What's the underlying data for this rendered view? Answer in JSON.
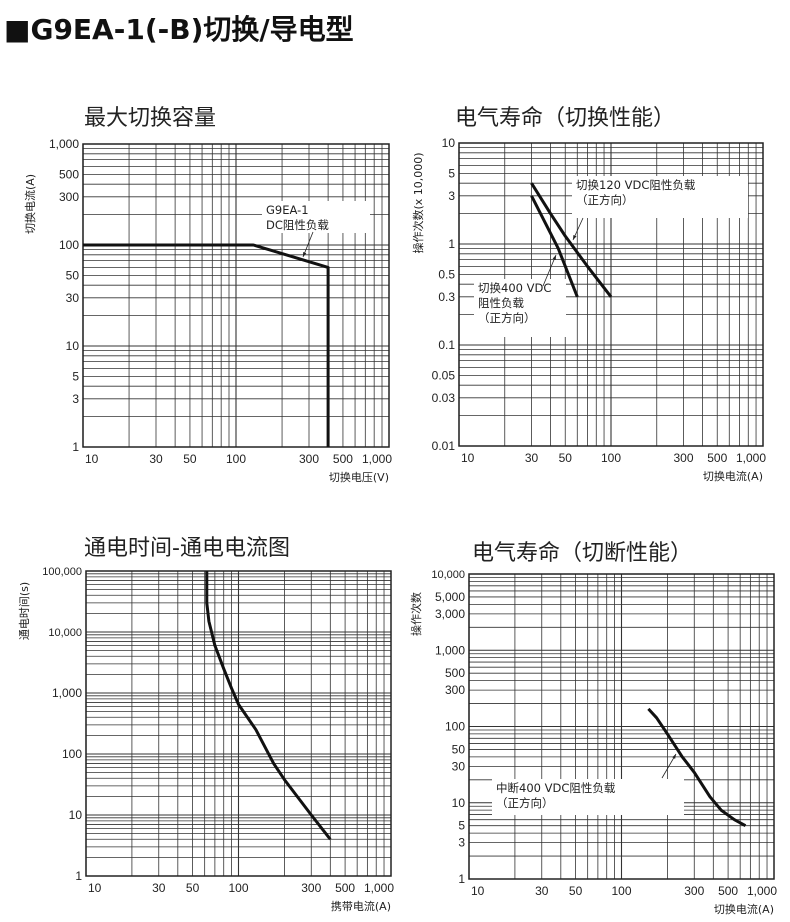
{
  "header": {
    "title": "■G9EA-1(-B)切换/导电型"
  },
  "chart_data": [
    {
      "type": "line",
      "title": "最大切换容量",
      "xlabel": "切换电压(V)",
      "ylabel": "切换电流(A)",
      "xscale": "log",
      "yscale": "log",
      "xlim": [
        10,
        1000
      ],
      "ylim": [
        1,
        1000
      ],
      "xticks": [
        [
          10,
          "10"
        ],
        [
          30,
          "30"
        ],
        [
          50,
          "50"
        ],
        [
          100,
          "100"
        ],
        [
          300,
          "300"
        ],
        [
          500,
          "500"
        ],
        [
          1000,
          "1,000"
        ]
      ],
      "yticks": [
        [
          1,
          "1"
        ],
        [
          3,
          "3"
        ],
        [
          5,
          "5"
        ],
        [
          10,
          "10"
        ],
        [
          30,
          "30"
        ],
        [
          50,
          "50"
        ],
        [
          100,
          "100"
        ],
        [
          300,
          "300"
        ],
        [
          500,
          "500"
        ],
        [
          1000,
          "1,000"
        ]
      ],
      "grid": true,
      "series": [
        {
          "name": "G9EA-1 DC阻性负载",
          "x": [
            10,
            130,
            400,
            400
          ],
          "y": [
            100,
            100,
            60,
            1
          ]
        }
      ],
      "annotations": [
        {
          "lines": [
            "G9EA-1",
            "DC阻性负载"
          ]
        }
      ]
    },
    {
      "type": "line",
      "title": "电气寿命（切换性能）",
      "xlabel": "切换电流(A)",
      "ylabel": "操作次数(x 10,000)",
      "xscale": "log",
      "yscale": "log",
      "xlim": [
        10,
        1000
      ],
      "ylim": [
        0.01,
        10
      ],
      "xticks": [
        [
          10,
          "10"
        ],
        [
          30,
          "30"
        ],
        [
          50,
          "50"
        ],
        [
          100,
          "100"
        ],
        [
          300,
          "300"
        ],
        [
          500,
          "500"
        ],
        [
          1000,
          "1,000"
        ]
      ],
      "yticks": [
        [
          0.01,
          "0.01"
        ],
        [
          0.03,
          "0.03"
        ],
        [
          0.05,
          "0.05"
        ],
        [
          0.1,
          "0.1"
        ],
        [
          0.3,
          "0.3"
        ],
        [
          0.5,
          "0.5"
        ],
        [
          1,
          "1"
        ],
        [
          3,
          "3"
        ],
        [
          5,
          "5"
        ],
        [
          10,
          "10"
        ]
      ],
      "grid": true,
      "series": [
        {
          "name": "切换120 VDC阻性负载（正方向）",
          "x": [
            30,
            40,
            50,
            70,
            100
          ],
          "y": [
            4,
            2,
            1.2,
            0.6,
            0.3
          ]
        },
        {
          "name": "切换400 VDC阻性负载（正方向）",
          "x": [
            30,
            45,
            60
          ],
          "y": [
            3,
            0.9,
            0.3
          ]
        }
      ],
      "annotations": [
        {
          "lines": [
            "切换120 VDC阻性负载",
            "（正方向）"
          ]
        },
        {
          "lines": [
            "切换400 VDC",
            "阻性负载",
            "（正方向）"
          ]
        }
      ]
    },
    {
      "type": "line",
      "title": "通电时间-通电电流图",
      "xlabel": "携带电流(A)",
      "ylabel": "通电时间(s)",
      "xscale": "log",
      "yscale": "log",
      "xlim": [
        10,
        1000
      ],
      "ylim": [
        1,
        100000
      ],
      "xticks": [
        [
          10,
          "10"
        ],
        [
          30,
          "30"
        ],
        [
          50,
          "50"
        ],
        [
          100,
          "100"
        ],
        [
          300,
          "300"
        ],
        [
          500,
          "500"
        ],
        [
          1000,
          "1,000"
        ]
      ],
      "yticks": [
        [
          1,
          "1"
        ],
        [
          10,
          "10"
        ],
        [
          100,
          "100"
        ],
        [
          1000,
          "1,000"
        ],
        [
          10000,
          "10,000"
        ],
        [
          100000,
          "100,000"
        ]
      ],
      "grid": true,
      "series": [
        {
          "name": "通电时间",
          "x": [
            62,
            62,
            64,
            70,
            80,
            90,
            100,
            130,
            170,
            200,
            300,
            400
          ],
          "y": [
            100000,
            30000,
            15000,
            6000,
            2500,
            1200,
            650,
            250,
            70,
            38,
            10,
            4
          ]
        }
      ],
      "annotations": []
    },
    {
      "type": "line",
      "title": "电气寿命（切断性能）",
      "xlabel": "切换电流(A)",
      "ylabel": "操作次数",
      "xscale": "log",
      "yscale": "log",
      "xlim": [
        10,
        1000
      ],
      "ylim": [
        1,
        10000
      ],
      "xticks": [
        [
          10,
          "10"
        ],
        [
          30,
          "30"
        ],
        [
          50,
          "50"
        ],
        [
          100,
          "100"
        ],
        [
          300,
          "300"
        ],
        [
          500,
          "500"
        ],
        [
          1000,
          "1,000"
        ]
      ],
      "yticks": [
        [
          1,
          "1"
        ],
        [
          3,
          "3"
        ],
        [
          5,
          "5"
        ],
        [
          10,
          "10"
        ],
        [
          30,
          "30"
        ],
        [
          50,
          "50"
        ],
        [
          100,
          "100"
        ],
        [
          300,
          "300"
        ],
        [
          500,
          "500"
        ],
        [
          1000,
          "1,000"
        ],
        [
          3000,
          "3,000"
        ],
        [
          5000,
          "5,000"
        ],
        [
          10000,
          "10,000"
        ]
      ],
      "grid": true,
      "series": [
        {
          "name": "中断400 VDC阻性负载（正方向）",
          "x": [
            150,
            170,
            200,
            250,
            300,
            380,
            450,
            550,
            650
          ],
          "y": [
            170,
            130,
            80,
            40,
            25,
            12,
            8,
            6,
            5
          ]
        }
      ],
      "annotations": [
        {
          "lines": [
            "中断400 VDC阻性负载",
            "（正方向）"
          ]
        }
      ]
    }
  ]
}
